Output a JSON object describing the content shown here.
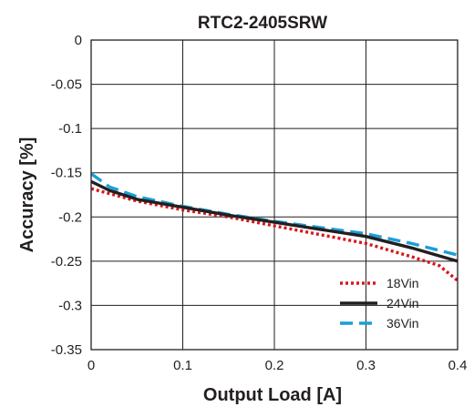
{
  "chart_data": {
    "type": "line",
    "title": "RTC2-2405SRW",
    "xlabel": "Output Load [A]",
    "ylabel": "Accuracy [%]",
    "xlim": [
      0,
      0.4
    ],
    "ylim": [
      -0.35,
      0
    ],
    "x_ticks": [
      "0",
      "0.1",
      "0.2",
      "0.3",
      "0.4"
    ],
    "x_tick_values": [
      0,
      0.1,
      0.2,
      0.3,
      0.4
    ],
    "y_ticks": [
      "0",
      "-0.05",
      "-0.1",
      "-0.15",
      "-0.2",
      "-0.25",
      "-0.3",
      "-0.35"
    ],
    "y_tick_values": [
      0,
      -0.05,
      -0.1,
      -0.15,
      -0.2,
      -0.25,
      -0.3,
      -0.35
    ],
    "grid": true,
    "legend_position": "bottom-right",
    "series": [
      {
        "name": "18Vin",
        "color": "#d7161f",
        "style": "dotted",
        "x": [
          0,
          0.05,
          0.1,
          0.15,
          0.2,
          0.25,
          0.3,
          0.35,
          0.38,
          0.4
        ],
        "y": [
          -0.168,
          -0.182,
          -0.192,
          -0.2,
          -0.21,
          -0.22,
          -0.23,
          -0.245,
          -0.255,
          -0.272
        ]
      },
      {
        "name": "24Vin",
        "color": "#231f20",
        "style": "solid",
        "x": [
          0,
          0.02,
          0.05,
          0.1,
          0.15,
          0.2,
          0.25,
          0.3,
          0.35,
          0.4
        ],
        "y": [
          -0.16,
          -0.17,
          -0.18,
          -0.189,
          -0.198,
          -0.206,
          -0.214,
          -0.222,
          -0.235,
          -0.25
        ]
      },
      {
        "name": "36Vin",
        "color": "#1a9fd9",
        "style": "dashed",
        "x": [
          0,
          0.02,
          0.05,
          0.1,
          0.15,
          0.2,
          0.25,
          0.3,
          0.35,
          0.4
        ],
        "y": [
          -0.151,
          -0.166,
          -0.177,
          -0.188,
          -0.197,
          -0.205,
          -0.212,
          -0.219,
          -0.23,
          -0.243
        ]
      }
    ]
  }
}
